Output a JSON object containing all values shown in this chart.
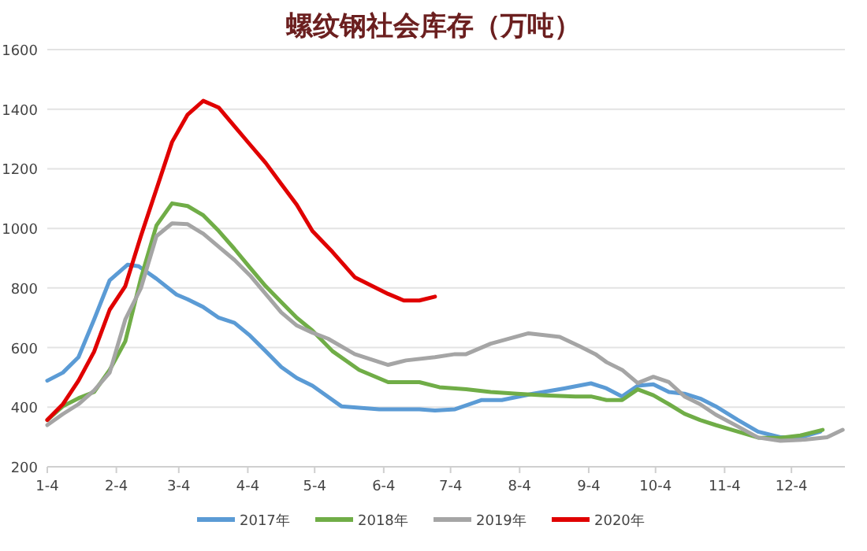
{
  "chart_data": {
    "type": "line",
    "title": "螺纹钢社会库存（万吨）",
    "xlim": [
      "--01-04",
      "--12-28"
    ],
    "xticks": [
      {
        "value": "--01-04",
        "label": "1-4"
      },
      {
        "value": "--02-04",
        "label": "2-4"
      },
      {
        "value": "--03-04",
        "label": "3-4"
      },
      {
        "value": "--04-04",
        "label": "4-4"
      },
      {
        "value": "--05-04",
        "label": "5-4"
      },
      {
        "value": "--06-04",
        "label": "6-4"
      },
      {
        "value": "--07-04",
        "label": "7-4"
      },
      {
        "value": "--08-04",
        "label": "8-4"
      },
      {
        "value": "--09-04",
        "label": "9-4"
      },
      {
        "value": "--10-04",
        "label": "10-4"
      },
      {
        "value": "--11-04",
        "label": "11-4"
      },
      {
        "value": "--12-04",
        "label": "12-4"
      }
    ],
    "ylim": [
      200,
      1600
    ],
    "yticks": [
      200,
      400,
      600,
      800,
      1000,
      1200,
      1400,
      1600
    ],
    "grid": "y",
    "legend": "bottom",
    "line_style": "solid",
    "series": [
      {
        "name": "2017年",
        "color": "#5b9bd5",
        "x": [
          "--01-04",
          "--01-11",
          "--01-18",
          "--01-25",
          "--02-01",
          "--02-09",
          "--02-14",
          "--02-22",
          "--03-03",
          "--03-08",
          "--03-15",
          "--03-22",
          "--03-29",
          "--04-05",
          "--04-12",
          "--04-19",
          "--04-26",
          "--05-03",
          "--05-16",
          "--06-02",
          "--06-20",
          "--06-27",
          "--07-06",
          "--07-18",
          "--07-27",
          "--08-10",
          "--08-24",
          "--09-05",
          "--09-12",
          "--09-19",
          "--09-26",
          "--10-03",
          "--10-10",
          "--10-17",
          "--10-24",
          "--10-31",
          "--11-10",
          "--11-19",
          "--11-29",
          "--12-08",
          "--12-17"
        ],
        "values": [
          489,
          516,
          568,
          694,
          826,
          878,
          873,
          831,
          778,
          762,
          736,
          700,
          683,
          640,
          588,
          535,
          498,
          472,
          403,
          393,
          393,
          389,
          393,
          424,
          424,
          445,
          463,
          480,
          463,
          436,
          472,
          477,
          451,
          445,
          429,
          403,
          357,
          318,
          299,
          299,
          318
        ]
      },
      {
        "name": "2018年",
        "color": "#70ad47",
        "x": [
          "--01-04",
          "--01-11",
          "--01-18",
          "--01-25",
          "--02-01",
          "--02-08",
          "--02-15",
          "--02-22",
          "--03-01",
          "--03-08",
          "--03-15",
          "--03-22",
          "--03-29",
          "--04-05",
          "--04-12",
          "--04-19",
          "--04-26",
          "--05-03",
          "--05-12",
          "--05-24",
          "--06-06",
          "--06-20",
          "--06-29",
          "--07-11",
          "--07-22",
          "--08-03",
          "--08-15",
          "--08-29",
          "--09-05",
          "--09-12",
          "--09-19",
          "--09-26",
          "--10-03",
          "--10-10",
          "--10-17",
          "--10-24",
          "--10-31",
          "--11-10",
          "--11-19",
          "--11-29",
          "--12-08",
          "--12-18"
        ],
        "values": [
          357,
          403,
          430,
          451,
          525,
          621,
          832,
          1010,
          1084,
          1075,
          1044,
          991,
          931,
          868,
          806,
          753,
          700,
          657,
          588,
          525,
          484,
          484,
          467,
          460,
          451,
          445,
          440,
          436,
          436,
          424,
          424,
          460,
          440,
          410,
          378,
          357,
          340,
          318,
          298,
          297,
          305,
          324
        ]
      },
      {
        "name": "2019年",
        "color": "#a5a5a5",
        "x": [
          "--01-04",
          "--01-11",
          "--01-18",
          "--01-25",
          "--02-01",
          "--02-08",
          "--02-15",
          "--02-22",
          "--03-01",
          "--03-08",
          "--03-15",
          "--03-22",
          "--03-29",
          "--04-05",
          "--04-12",
          "--04-19",
          "--04-26",
          "--05-03",
          "--05-10",
          "--05-22",
          "--06-06",
          "--06-14",
          "--06-27",
          "--07-06",
          "--07-11",
          "--07-22",
          "--08-08",
          "--08-22",
          "--08-31",
          "--09-07",
          "--09-12",
          "--09-19",
          "--09-26",
          "--10-03",
          "--10-10",
          "--10-17",
          "--10-24",
          "--10-31",
          "--11-10",
          "--11-19",
          "--11-29",
          "--12-10",
          "--12-20",
          "--12-27"
        ],
        "values": [
          340,
          377,
          410,
          456,
          516,
          694,
          799,
          974,
          1017,
          1014,
          982,
          938,
          894,
          842,
          780,
          718,
          674,
          650,
          630,
          578,
          542,
          557,
          568,
          578,
          578,
          613,
          648,
          636,
          604,
          578,
          551,
          525,
          481,
          502,
          484,
          436,
          410,
          375,
          335,
          298,
          287,
          291,
          299,
          324
        ]
      },
      {
        "name": "2020年",
        "color": "#e00000",
        "x": [
          "--01-04",
          "--01-11",
          "--01-18",
          "--01-25",
          "--02-01",
          "--02-08",
          "--02-15",
          "--02-22",
          "--03-01",
          "--03-08",
          "--03-15",
          "--03-22",
          "--03-29",
          "--04-05",
          "--04-12",
          "--04-19",
          "--04-26",
          "--05-03",
          "--05-12",
          "--05-22",
          "--06-06",
          "--06-13",
          "--06-20",
          "--06-27"
        ],
        "values": [
          357,
          410,
          489,
          586,
          727,
          806,
          974,
          1132,
          1290,
          1382,
          1428,
          1405,
          1343,
          1281,
          1220,
          1149,
          1079,
          991,
          921,
          836,
          780,
          758,
          758,
          771
        ]
      }
    ]
  }
}
